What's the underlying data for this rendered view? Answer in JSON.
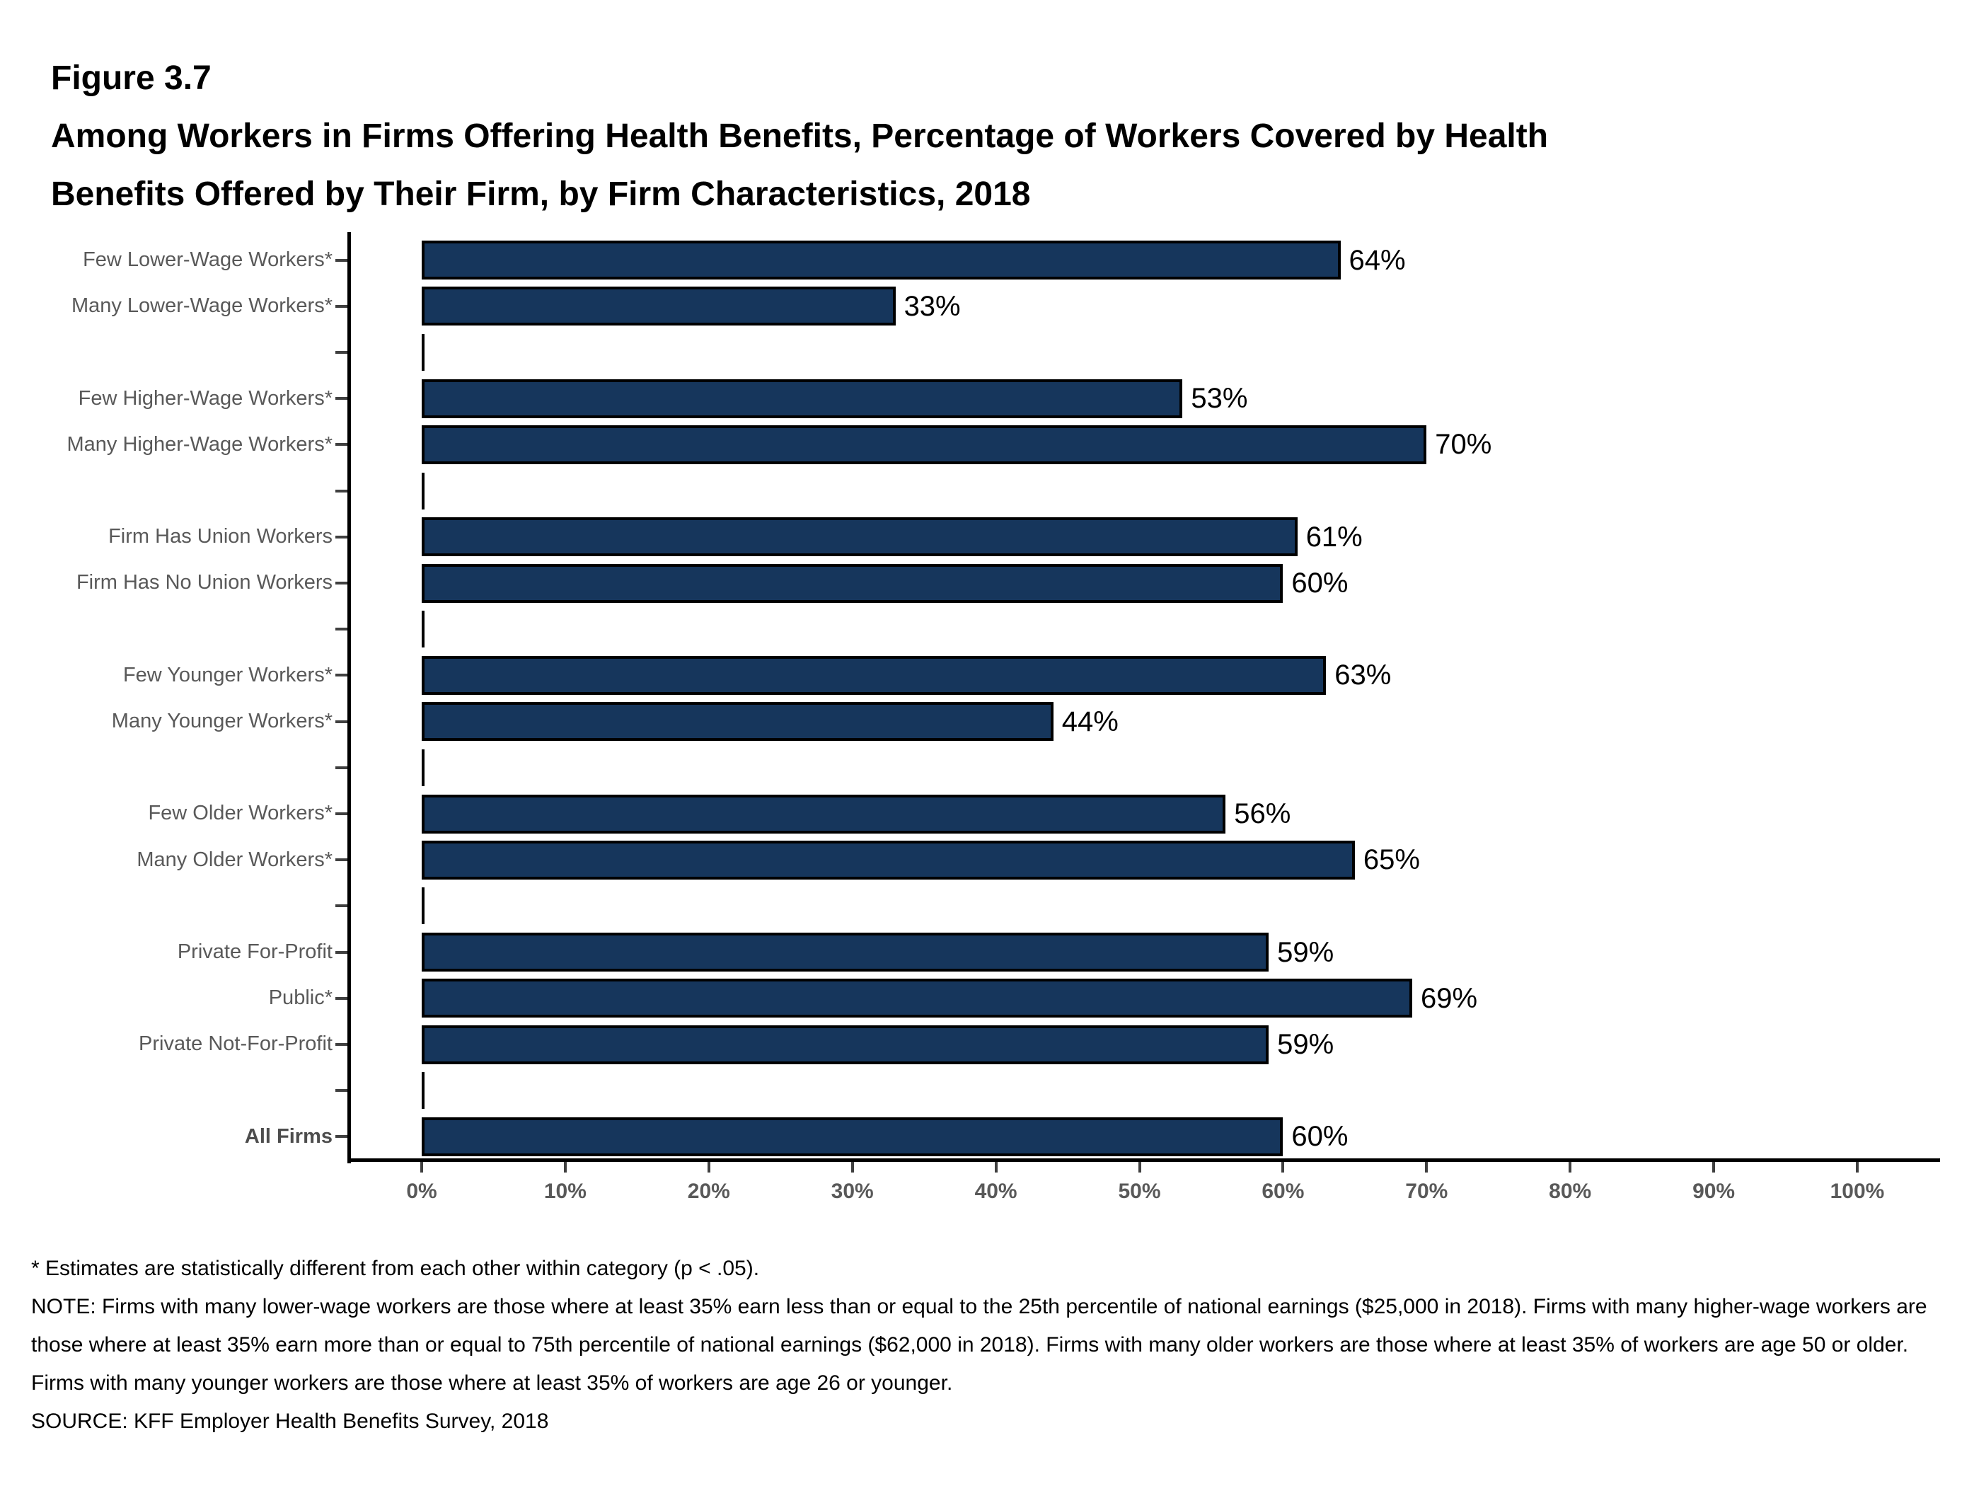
{
  "figure_label": "Figure 3.7",
  "title_line1": "Among Workers in Firms Offering Health Benefits, Percentage of Workers Covered by Health",
  "title_line2": "Benefits Offered by Their Firm, by Firm Characteristics, 2018",
  "chart_data": {
    "type": "bar",
    "orientation": "horizontal",
    "unit": "%",
    "bar_color": "#16365C",
    "bar_border_color": "#000000",
    "label_color": "#595959",
    "xlim": [
      0,
      100
    ],
    "x_tick_step": 10,
    "x_tick_labels": [
      "0%",
      "10%",
      "20%",
      "30%",
      "40%",
      "50%",
      "60%",
      "70%",
      "80%",
      "90%",
      "100%"
    ],
    "rows": [
      {
        "label": "Few Lower-Wage Workers*",
        "value": 64,
        "value_label": "64%"
      },
      {
        "label": "Many Lower-Wage Workers*",
        "value": 33,
        "value_label": "33%"
      },
      {
        "spacer": true
      },
      {
        "label": "Few Higher-Wage Workers*",
        "value": 53,
        "value_label": "53%"
      },
      {
        "label": "Many Higher-Wage Workers*",
        "value": 70,
        "value_label": "70%"
      },
      {
        "spacer": true
      },
      {
        "label": "Firm Has Union Workers",
        "value": 61,
        "value_label": "61%"
      },
      {
        "label": "Firm Has No Union Workers",
        "value": 60,
        "value_label": "60%"
      },
      {
        "spacer": true
      },
      {
        "label": "Few Younger Workers*",
        "value": 63,
        "value_label": "63%"
      },
      {
        "label": "Many Younger Workers*",
        "value": 44,
        "value_label": "44%"
      },
      {
        "spacer": true
      },
      {
        "label": "Few Older Workers*",
        "value": 56,
        "value_label": "56%"
      },
      {
        "label": "Many Older Workers*",
        "value": 65,
        "value_label": "65%"
      },
      {
        "spacer": true
      },
      {
        "label": "Private For-Profit",
        "value": 59,
        "value_label": "59%"
      },
      {
        "label": "Public*",
        "value": 69,
        "value_label": "69%"
      },
      {
        "label": "Private Not-For-Profit",
        "value": 59,
        "value_label": "59%"
      },
      {
        "spacer": true
      },
      {
        "label": "All Firms",
        "value": 60,
        "value_label": "60%",
        "bold": true
      }
    ]
  },
  "footnotes": {
    "significance": "* Estimates are statistically different from each other within category (p < .05).",
    "note": "NOTE: Firms with many lower-wage workers are those where at least 35% earn less than or equal to the 25th percentile of national earnings ($25,000 in 2018). Firms with many higher-wage workers are those where at least 35% earn more than or equal to 75th percentile of national earnings ($62,000 in 2018). Firms with many older workers are those where at least 35% of workers are age 50 or older. Firms with many younger workers are those where at least 35% of workers are age 26 or younger.",
    "source": "SOURCE: KFF Employer Health Benefits Survey, 2018"
  }
}
